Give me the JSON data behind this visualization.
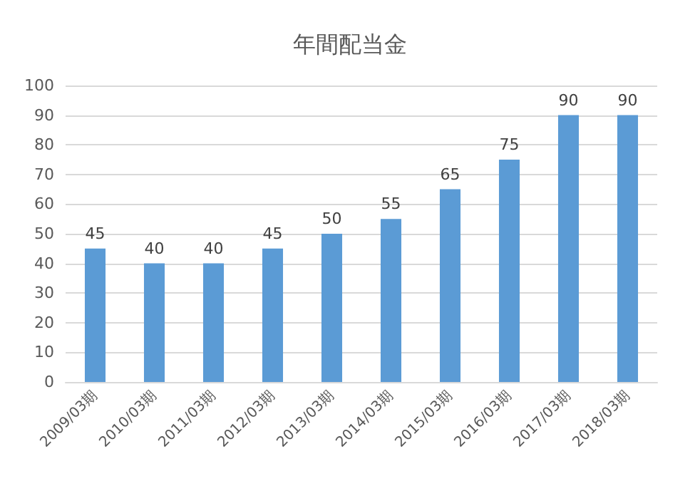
{
  "chart_data": {
    "type": "bar",
    "title": "年間配当金",
    "categories": [
      "2009/03期",
      "2010/03期",
      "2011/03期",
      "2012/03期",
      "2013/03期",
      "2014/03期",
      "2015/03期",
      "2016/03期",
      "2017/03期",
      "2018/03期"
    ],
    "values": [
      45,
      40,
      40,
      45,
      50,
      55,
      65,
      75,
      90,
      90
    ],
    "color": "#5b9bd5",
    "ylim": [
      0,
      100
    ],
    "yticks": [
      0,
      10,
      20,
      30,
      40,
      50,
      60,
      70,
      80,
      90,
      100
    ],
    "grid": "y",
    "data_labels": true
  }
}
